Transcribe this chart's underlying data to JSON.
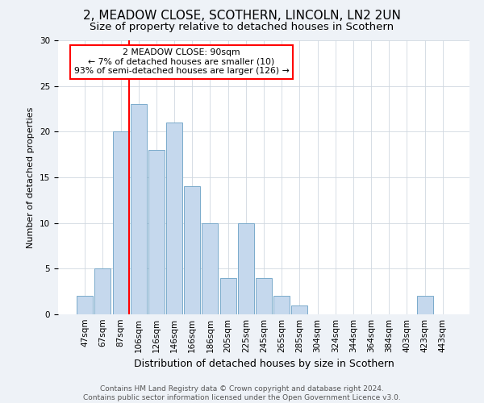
{
  "title1": "2, MEADOW CLOSE, SCOTHERN, LINCOLN, LN2 2UN",
  "title2": "Size of property relative to detached houses in Scothern",
  "xlabel": "Distribution of detached houses by size in Scothern",
  "ylabel": "Number of detached properties",
  "bar_labels": [
    "47sqm",
    "67sqm",
    "87sqm",
    "106sqm",
    "126sqm",
    "146sqm",
    "166sqm",
    "186sqm",
    "205sqm",
    "225sqm",
    "245sqm",
    "265sqm",
    "285sqm",
    "304sqm",
    "324sqm",
    "344sqm",
    "364sqm",
    "384sqm",
    "403sqm",
    "423sqm",
    "443sqm"
  ],
  "bar_values": [
    2,
    5,
    20,
    23,
    18,
    21,
    14,
    10,
    4,
    10,
    4,
    2,
    1,
    0,
    0,
    0,
    0,
    0,
    0,
    2,
    0
  ],
  "bar_color": "#c5d8ed",
  "bar_edge_color": "#7aaacb",
  "ylim": [
    0,
    30
  ],
  "red_line_x": 2,
  "annotation_title": "2 MEADOW CLOSE: 90sqm",
  "annotation_line1": "← 7% of detached houses are smaller (10)",
  "annotation_line2": "93% of semi-detached houses are larger (126) →",
  "annotation_box_color": "white",
  "annotation_box_edge_color": "red",
  "red_line_color": "red",
  "footer_line1": "Contains HM Land Registry data © Crown copyright and database right 2024.",
  "footer_line2": "Contains public sector information licensed under the Open Government Licence v3.0.",
  "background_color": "#eef2f7",
  "plot_background_color": "white",
  "title1_fontsize": 11,
  "title2_fontsize": 9.5,
  "xlabel_fontsize": 9,
  "ylabel_fontsize": 8,
  "tick_fontsize": 7.5,
  "footer_fontsize": 6.5,
  "yticks": [
    0,
    5,
    10,
    15,
    20,
    25,
    30
  ]
}
